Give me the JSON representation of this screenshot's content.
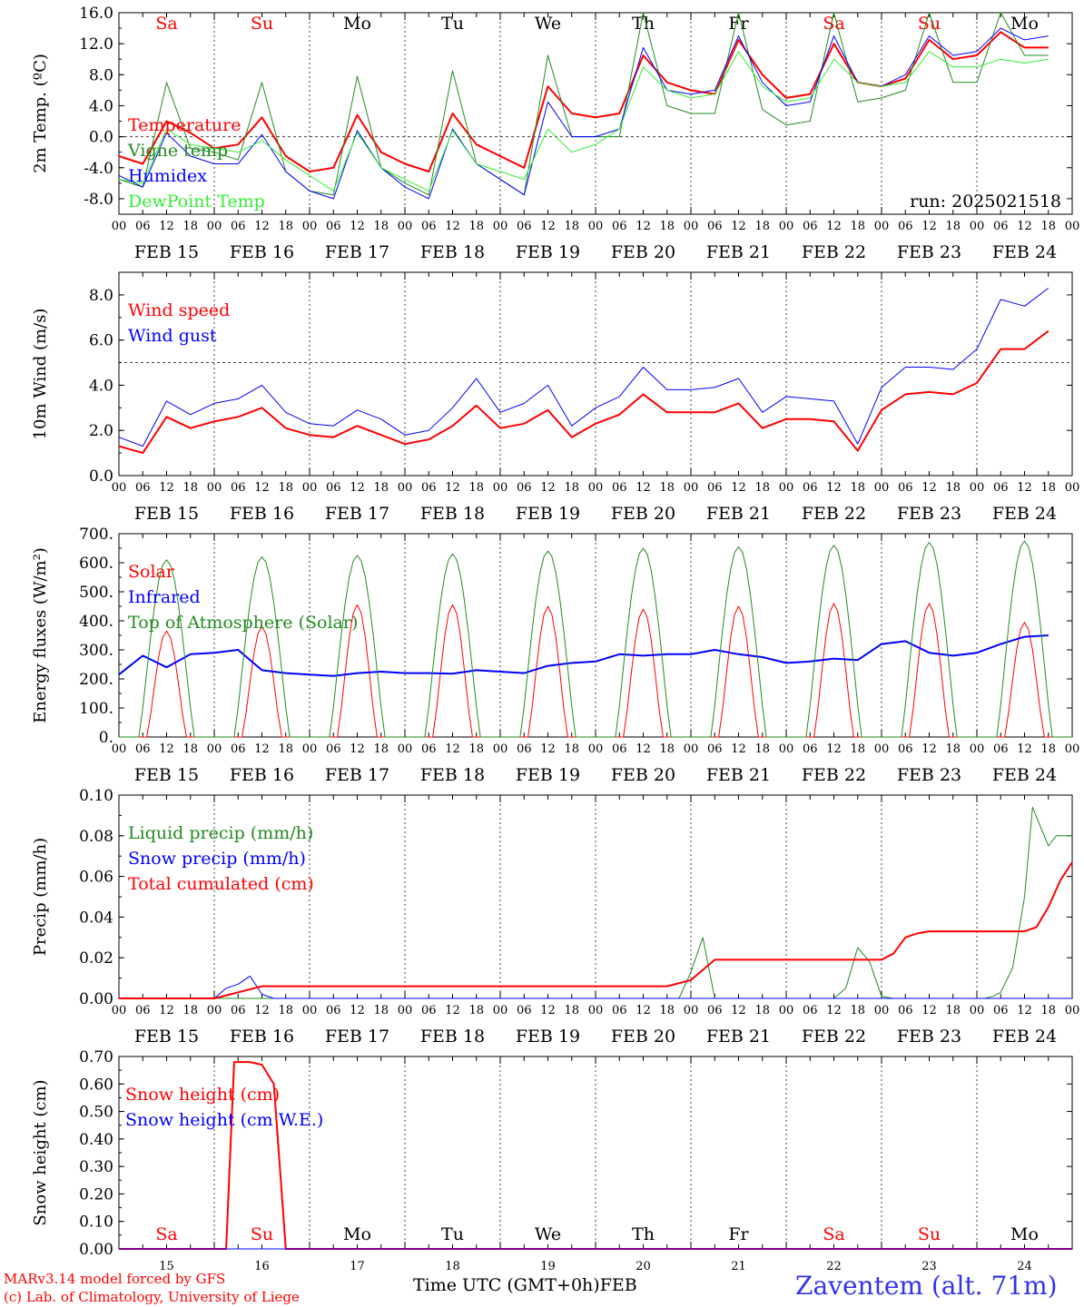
{
  "footer": {
    "credit_line1": "MARv3.14 model forced by GFS",
    "credit_line2": "(c) Lab. of Climatology, University of Liege",
    "xaxis_title": "Time UTC (GMT+0h)FEB",
    "location": "Zaventem (alt. 71m)"
  },
  "colors": {
    "red": "#ff0000",
    "darkgreen": "#228b22",
    "blue": "#0000ff",
    "lightgreen": "#33ee33",
    "weekend": "#ff0000",
    "weekday": "#000000"
  },
  "time_axis": {
    "hour_ticks": [
      "00",
      "06",
      "12",
      "18"
    ],
    "dates": [
      "FEB 15",
      "FEB 16",
      "FEB 17",
      "FEB 18",
      "FEB 19",
      "FEB 20",
      "FEB 21",
      "FEB 22",
      "FEB 23",
      "FEB 24"
    ],
    "weekdays": [
      "Sa",
      "Su",
      "Mo",
      "Tu",
      "We",
      "Th",
      "Fr",
      "Sa",
      "Su",
      "Mo"
    ],
    "weekend": [
      true,
      true,
      false,
      false,
      false,
      false,
      false,
      true,
      true,
      false
    ],
    "day_numbers": [
      "15",
      "16",
      "17",
      "18",
      "19",
      "20",
      "21",
      "22",
      "23",
      "24"
    ]
  },
  "chart_data": [
    {
      "id": "temp",
      "type": "line",
      "ylabel": "2m Temp. (ºC)",
      "ylim": [
        -10,
        16
      ],
      "yticks": [
        "-8.0",
        "-4.0",
        "0.0",
        "4.0",
        "8.0",
        "12.0",
        "16.0"
      ],
      "yticks_values": [
        -8,
        -4,
        0,
        4,
        8,
        12,
        16
      ],
      "reference_line": 0,
      "annotation": "run: 2025021518",
      "show_weekdays": true,
      "x_unit": "hours since FEB 15 00 UTC",
      "series": [
        {
          "name": "Temperature",
          "color": "#ff0000",
          "width": 2,
          "x": [
            0,
            6,
            12,
            18,
            24,
            30,
            36,
            42,
            48,
            54,
            60,
            66,
            72,
            78,
            84,
            90,
            96,
            102,
            108,
            114,
            120,
            126,
            132,
            138,
            144,
            150,
            156,
            162,
            168,
            174,
            180,
            186,
            192,
            198,
            204,
            210,
            216,
            222,
            228,
            234
          ],
          "y": [
            -2.5,
            -3.5,
            2.0,
            0.5,
            -1.5,
            -1.0,
            2.5,
            -2.5,
            -4.5,
            -4.0,
            2.8,
            -2.0,
            -3.5,
            -4.5,
            3.0,
            -1.0,
            -2.5,
            -4.0,
            6.5,
            3.0,
            2.5,
            3.0,
            10.5,
            7.0,
            6.0,
            5.5,
            12.5,
            8.0,
            5.0,
            5.5,
            12.0,
            7.0,
            6.5,
            7.5,
            12.5,
            10.0,
            10.5,
            13.5,
            11.5,
            11.5
          ]
        },
        {
          "name": "Vigne temp",
          "color": "#228b22",
          "width": 1,
          "x": [
            0,
            6,
            12,
            18,
            24,
            30,
            36,
            42,
            48,
            54,
            60,
            66,
            72,
            78,
            84,
            90,
            96,
            102,
            108,
            114,
            120,
            126,
            132,
            138,
            144,
            150,
            156,
            162,
            168,
            174,
            180,
            186,
            192,
            198,
            204,
            210,
            216,
            222,
            228,
            234
          ],
          "y": [
            -5.5,
            -6.5,
            7.0,
            -1.5,
            -2.0,
            -3.0,
            7.0,
            -4.5,
            -7.0,
            -7.5,
            7.8,
            -4.0,
            -6.0,
            -7.5,
            8.5,
            -3.5,
            -5.5,
            -7.5,
            10.5,
            0.0,
            0.0,
            0.0,
            16.0,
            4.0,
            3.0,
            3.0,
            17.0,
            3.5,
            1.5,
            2.0,
            17.5,
            4.5,
            5.0,
            6.0,
            16.5,
            7.0,
            7.0,
            17.0,
            10.5,
            10.5
          ]
        },
        {
          "name": "Humidex",
          "color": "#0000ff",
          "width": 1,
          "x": [
            0,
            6,
            12,
            18,
            24,
            30,
            36,
            42,
            48,
            54,
            60,
            66,
            72,
            78,
            84,
            90,
            96,
            102,
            108,
            114,
            120,
            126,
            132,
            138,
            144,
            150,
            156,
            162,
            168,
            174,
            180,
            186,
            192,
            198,
            204,
            210,
            216,
            222,
            228,
            234
          ],
          "y": [
            -5.0,
            -6.5,
            0.5,
            -2.5,
            -3.5,
            -3.5,
            0.3,
            -4.5,
            -7.0,
            -8.0,
            0.8,
            -4.0,
            -6.5,
            -8.0,
            1.0,
            -3.5,
            -5.5,
            -7.5,
            4.5,
            0.0,
            0.0,
            1.0,
            11.5,
            6.0,
            5.5,
            6.0,
            13.0,
            7.0,
            4.0,
            4.5,
            13.0,
            7.0,
            6.5,
            8.0,
            13.0,
            10.5,
            11.0,
            14.0,
            12.5,
            13.0
          ]
        },
        {
          "name": "DewPoint Temp",
          "color": "#33ee33",
          "width": 1,
          "x": [
            0,
            6,
            12,
            18,
            24,
            30,
            36,
            42,
            48,
            54,
            60,
            66,
            72,
            78,
            84,
            90,
            96,
            102,
            108,
            114,
            120,
            126,
            132,
            138,
            144,
            150,
            156,
            162,
            168,
            174,
            180,
            186,
            192,
            198,
            204,
            210,
            216,
            222,
            228,
            234
          ],
          "y": [
            -5.5,
            -6.0,
            1.0,
            -1.0,
            -1.5,
            -2.0,
            -0.5,
            -3.0,
            -5.0,
            -7.0,
            0.5,
            -4.0,
            -5.5,
            -7.0,
            0.8,
            -3.5,
            -4.5,
            -5.5,
            1.0,
            -2.0,
            -1.0,
            1.0,
            9.0,
            6.0,
            5.0,
            5.5,
            11.0,
            6.5,
            4.5,
            5.0,
            10.0,
            7.0,
            6.5,
            7.0,
            11.0,
            9.0,
            9.0,
            10.0,
            9.5,
            10.0
          ]
        }
      ]
    },
    {
      "id": "wind",
      "type": "line",
      "ylabel": "10m Wind (m/s)",
      "ylim": [
        0,
        9
      ],
      "yticks": [
        "0.0",
        "2.0",
        "4.0",
        "6.0",
        "8.0"
      ],
      "yticks_values": [
        0,
        2,
        4,
        6,
        8
      ],
      "reference_line": 5,
      "x_unit": "hours since FEB 15 00 UTC",
      "series": [
        {
          "name": "Wind speed",
          "color": "#ff0000",
          "width": 2,
          "x": [
            0,
            6,
            12,
            18,
            24,
            30,
            36,
            42,
            48,
            54,
            60,
            66,
            72,
            78,
            84,
            90,
            96,
            102,
            108,
            114,
            120,
            126,
            132,
            138,
            144,
            150,
            156,
            162,
            168,
            174,
            180,
            186,
            192,
            198,
            204,
            210,
            216,
            222,
            228,
            234
          ],
          "y": [
            1.3,
            1.0,
            2.6,
            2.1,
            2.4,
            2.6,
            3.0,
            2.1,
            1.8,
            1.7,
            2.2,
            1.8,
            1.4,
            1.6,
            2.2,
            3.1,
            2.1,
            2.3,
            2.9,
            1.7,
            2.3,
            2.7,
            3.6,
            2.8,
            2.8,
            2.8,
            3.2,
            2.1,
            2.5,
            2.5,
            2.4,
            1.1,
            2.9,
            3.6,
            3.7,
            3.6,
            4.1,
            5.6,
            5.6,
            6.4
          ]
        },
        {
          "name": "Wind gust",
          "color": "#0000ff",
          "width": 1,
          "x": [
            0,
            6,
            12,
            18,
            24,
            30,
            36,
            42,
            48,
            54,
            60,
            66,
            72,
            78,
            84,
            90,
            96,
            102,
            108,
            114,
            120,
            126,
            132,
            138,
            144,
            150,
            156,
            162,
            168,
            174,
            180,
            186,
            192,
            198,
            204,
            210,
            216,
            222,
            228,
            234
          ],
          "y": [
            1.7,
            1.3,
            3.3,
            2.7,
            3.2,
            3.4,
            4.0,
            2.8,
            2.3,
            2.2,
            2.9,
            2.5,
            1.8,
            2.0,
            3.0,
            4.3,
            2.8,
            3.2,
            4.0,
            2.2,
            3.0,
            3.5,
            4.8,
            3.8,
            3.8,
            3.9,
            4.3,
            2.8,
            3.5,
            3.4,
            3.3,
            1.4,
            3.9,
            4.8,
            4.8,
            4.7,
            5.6,
            7.8,
            7.5,
            8.3
          ]
        }
      ]
    },
    {
      "id": "energy",
      "type": "line",
      "ylabel": "Energy fluxes (W/m²)",
      "ylim": [
        0,
        700
      ],
      "yticks": [
        "0.",
        "100.",
        "200.",
        "300.",
        "400.",
        "500.",
        "600.",
        "700."
      ],
      "yticks_values": [
        0,
        100,
        200,
        300,
        400,
        500,
        600,
        700
      ],
      "x_unit": "hours since FEB 15 00 UTC",
      "solar_peaks": [
        365,
        380,
        455,
        455,
        450,
        440,
        450,
        460,
        460,
        395
      ],
      "toa_peaks": [
        610,
        620,
        625,
        630,
        640,
        650,
        655,
        660,
        670,
        675
      ],
      "series": [
        {
          "name": "Solar",
          "color": "#ff0000",
          "width": 1
        },
        {
          "name": "Infrared",
          "color": "#0000ff",
          "width": 2,
          "x": [
            0,
            6,
            12,
            18,
            24,
            30,
            36,
            42,
            48,
            54,
            60,
            66,
            72,
            78,
            84,
            90,
            96,
            102,
            108,
            114,
            120,
            126,
            132,
            138,
            144,
            150,
            156,
            162,
            168,
            174,
            180,
            186,
            192,
            198,
            204,
            210,
            216,
            222,
            228,
            234
          ],
          "y": [
            215,
            280,
            240,
            285,
            290,
            300,
            230,
            220,
            215,
            210,
            220,
            225,
            220,
            220,
            218,
            230,
            225,
            220,
            245,
            255,
            260,
            285,
            280,
            285,
            285,
            300,
            285,
            275,
            255,
            260,
            270,
            265,
            320,
            330,
            290,
            280,
            290,
            320,
            345,
            350
          ]
        },
        {
          "name": "Top of Atmosphere (Solar)",
          "color": "#228b22",
          "width": 1
        }
      ]
    },
    {
      "id": "precip",
      "type": "line",
      "ylabel": "Precip (mm/h)",
      "ylim": [
        0,
        0.1
      ],
      "yticks": [
        "0.00",
        "0.02",
        "0.04",
        "0.06",
        "0.08",
        "0.10"
      ],
      "yticks_values": [
        0,
        0.02,
        0.04,
        0.06,
        0.08,
        0.1
      ],
      "x_unit": "hours since FEB 15 00 UTC",
      "series": [
        {
          "name": "Liquid precip (mm/h)",
          "color": "#228b22",
          "width": 1,
          "x": [
            0,
            30,
            36,
            138,
            141,
            144,
            147,
            150,
            168,
            180,
            183,
            186,
            189,
            192,
            195,
            218,
            220,
            222,
            225,
            228,
            230,
            234,
            236,
            240
          ],
          "y": [
            0,
            0,
            0,
            0,
            0,
            0.013,
            0.03,
            0.0,
            0,
            0,
            0.005,
            0.025,
            0.018,
            0.001,
            0,
            0,
            0.001,
            0.003,
            0.015,
            0.05,
            0.094,
            0.075,
            0.08,
            0.08
          ]
        },
        {
          "name": "Snow precip (mm/h)",
          "color": "#0000ff",
          "width": 1,
          "x": [
            0,
            24,
            27,
            30,
            33,
            36,
            39,
            240
          ],
          "y": [
            0,
            0,
            0.005,
            0.007,
            0.011,
            0.002,
            0,
            0
          ]
        },
        {
          "name": "Total cumulated (cm)",
          "color": "#ff0000",
          "width": 2,
          "x": [
            0,
            24,
            30,
            36,
            138,
            144,
            150,
            156,
            192,
            195,
            198,
            201,
            204,
            228,
            231,
            234,
            237,
            240
          ],
          "y": [
            0,
            0,
            0.003,
            0.006,
            0.006,
            0.009,
            0.019,
            0.019,
            0.019,
            0.022,
            0.03,
            0.032,
            0.033,
            0.033,
            0.035,
            0.045,
            0.058,
            0.067
          ]
        }
      ]
    },
    {
      "id": "snow",
      "type": "line",
      "ylabel": "Snow height (cm)",
      "ylim": [
        0,
        0.7
      ],
      "yticks": [
        "0.00",
        "0.10",
        "0.20",
        "0.30",
        "0.40",
        "0.50",
        "0.60",
        "0.70"
      ],
      "yticks_values": [
        0,
        0.1,
        0.2,
        0.3,
        0.4,
        0.5,
        0.6,
        0.7
      ],
      "x_unit": "hours since FEB 15 00 UTC",
      "show_weekdays_bottom": true,
      "series": [
        {
          "name": "Snow height (cm)",
          "color": "#ff0000",
          "width": 2,
          "x": [
            0,
            27,
            29,
            33,
            36,
            39,
            42,
            240
          ],
          "y": [
            0,
            0,
            0.68,
            0.68,
            0.67,
            0.6,
            0,
            0
          ]
        },
        {
          "name": "Snow height (cm W.E.)",
          "color": "#0000ff",
          "width": 1,
          "x": [
            0,
            240
          ],
          "y": [
            0,
            0
          ]
        }
      ]
    }
  ]
}
